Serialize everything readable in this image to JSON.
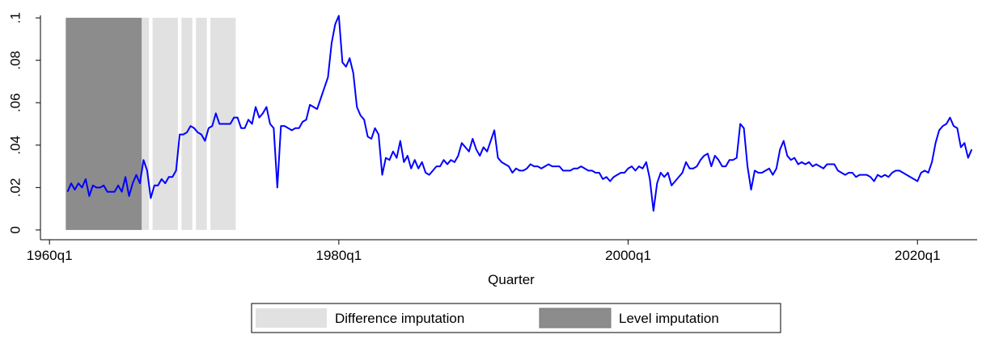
{
  "chart_data": {
    "type": "line",
    "x_label": "Quarter",
    "xlim": [
      -2.5,
      256.5
    ],
    "xticks": [
      {
        "value": 0,
        "label": "1960q1"
      },
      {
        "value": 80,
        "label": "1980q1"
      },
      {
        "value": 160,
        "label": "2000q1"
      },
      {
        "value": 240,
        "label": "2020q1"
      }
    ],
    "ylim": [
      -0.0046,
      0.1012
    ],
    "yticks": [
      0,
      {
        "value": 0.02,
        "label": ".02"
      },
      {
        "value": 0.04,
        "label": ".04"
      },
      {
        "value": 0.06,
        "label": ".06"
      },
      {
        "value": 0.08,
        "label": ".08"
      },
      {
        "value": 0.1,
        "label": ".1"
      }
    ],
    "shading": [
      {
        "name": "Difference imputation",
        "color": "#e1e1e1",
        "spans": [
          [
            26,
            27
          ],
          [
            29,
            35
          ],
          [
            37,
            39
          ],
          [
            41,
            43
          ],
          [
            45,
            51
          ]
        ]
      },
      {
        "name": "Level imputation",
        "color": "#8c8c8c",
        "spans": [
          [
            5,
            25
          ]
        ]
      }
    ],
    "color": "#0000ff",
    "x": [
      5,
      6,
      7,
      8,
      9,
      10,
      11,
      12,
      13,
      14,
      15,
      16,
      17,
      18,
      19,
      20,
      21,
      22,
      23,
      24,
      25,
      26,
      27,
      28,
      29,
      30,
      31,
      32,
      33,
      34,
      35,
      36,
      37,
      38,
      39,
      40,
      41,
      42,
      43,
      44,
      45,
      46,
      47,
      48,
      49,
      50,
      51,
      52,
      53,
      54,
      55,
      56,
      57,
      58,
      59,
      60,
      61,
      62,
      63,
      64,
      65,
      66,
      67,
      68,
      69,
      70,
      71,
      72,
      73,
      74,
      75,
      76,
      77,
      78,
      79,
      80,
      81,
      82,
      83,
      84,
      85,
      86,
      87,
      88,
      89,
      90,
      91,
      92,
      93,
      94,
      95,
      96,
      97,
      98,
      99,
      100,
      101,
      102,
      103,
      104,
      105,
      106,
      107,
      108,
      109,
      110,
      111,
      112,
      113,
      114,
      115,
      116,
      117,
      118,
      119,
      120,
      121,
      122,
      123,
      124,
      125,
      126,
      127,
      128,
      129,
      130,
      131,
      132,
      133,
      134,
      135,
      136,
      137,
      138,
      139,
      140,
      141,
      142,
      143,
      144,
      145,
      146,
      147,
      148,
      149,
      150,
      151,
      152,
      153,
      154,
      155,
      156,
      157,
      158,
      159,
      160,
      161,
      162,
      163,
      164,
      165,
      166,
      167,
      168,
      169,
      170,
      171,
      172,
      173,
      174,
      175,
      176,
      177,
      178,
      179,
      180,
      181,
      182,
      183,
      184,
      185,
      186,
      187,
      188,
      189,
      190,
      191,
      192,
      193,
      194,
      195,
      196,
      197,
      198,
      199,
      200,
      201,
      202,
      203,
      204,
      205,
      206,
      207,
      208,
      209,
      210,
      211,
      212,
      213,
      214,
      215,
      216,
      217,
      218,
      219,
      220,
      221,
      222,
      223,
      224,
      225,
      226,
      227,
      228,
      229,
      230,
      231,
      232,
      233,
      234,
      235,
      236,
      237,
      238,
      239,
      240,
      241,
      242,
      243,
      244,
      245,
      246,
      247,
      248,
      249,
      250,
      251,
      252,
      253,
      254,
      255
    ],
    "values": [
      0.018,
      0.022,
      0.019,
      0.022,
      0.02,
      0.024,
      0.016,
      0.021,
      0.02,
      0.02,
      0.021,
      0.018,
      0.018,
      0.018,
      0.021,
      0.018,
      0.025,
      0.016,
      0.022,
      0.026,
      0.022,
      0.033,
      0.028,
      0.015,
      0.021,
      0.021,
      0.024,
      0.022,
      0.025,
      0.025,
      0.028,
      0.045,
      0.045,
      0.046,
      0.049,
      0.048,
      0.046,
      0.045,
      0.042,
      0.048,
      0.049,
      0.055,
      0.05,
      0.05,
      0.05,
      0.05,
      0.053,
      0.053,
      0.048,
      0.048,
      0.052,
      0.05,
      0.058,
      0.053,
      0.055,
      0.058,
      0.05,
      0.048,
      0.02,
      0.049,
      0.049,
      0.048,
      0.047,
      0.048,
      0.048,
      0.051,
      0.052,
      0.059,
      0.058,
      0.057,
      0.062,
      0.067,
      0.072,
      0.088,
      0.097,
      0.101,
      0.079,
      0.077,
      0.081,
      0.074,
      0.058,
      0.054,
      0.052,
      0.044,
      0.043,
      0.048,
      0.045,
      0.026,
      0.034,
      0.033,
      0.037,
      0.034,
      0.042,
      0.032,
      0.035,
      0.029,
      0.033,
      0.029,
      0.032,
      0.027,
      0.026,
      0.028,
      0.03,
      0.03,
      0.033,
      0.031,
      0.033,
      0.032,
      0.035,
      0.041,
      0.039,
      0.037,
      0.043,
      0.038,
      0.035,
      0.039,
      0.037,
      0.042,
      0.047,
      0.034,
      0.032,
      0.031,
      0.03,
      0.027,
      0.029,
      0.028,
      0.028,
      0.029,
      0.031,
      0.03,
      0.03,
      0.029,
      0.03,
      0.031,
      0.03,
      0.03,
      0.03,
      0.028,
      0.028,
      0.028,
      0.029,
      0.029,
      0.03,
      0.029,
      0.028,
      0.028,
      0.027,
      0.027,
      0.024,
      0.025,
      0.023,
      0.025,
      0.026,
      0.027,
      0.027,
      0.029,
      0.03,
      0.028,
      0.03,
      0.029,
      0.032,
      0.024,
      0.009,
      0.022,
      0.027,
      0.025,
      0.027,
      0.021,
      0.023,
      0.025,
      0.027,
      0.032,
      0.029,
      0.029,
      0.03,
      0.033,
      0.035,
      0.036,
      0.03,
      0.035,
      0.033,
      0.03,
      0.03,
      0.033,
      0.033,
      0.034,
      0.05,
      0.048,
      0.03,
      0.019,
      0.028,
      0.027,
      0.027,
      0.028,
      0.029,
      0.026,
      0.029,
      0.038,
      0.042,
      0.035,
      0.033,
      0.034,
      0.031,
      0.032,
      0.031,
      0.032,
      0.03,
      0.031,
      0.03,
      0.029,
      0.031,
      0.031,
      0.031,
      0.028,
      0.027,
      0.026,
      0.027,
      0.027,
      0.025,
      0.026,
      0.026,
      0.026,
      0.025,
      0.023,
      0.026,
      0.025,
      0.026,
      0.025,
      0.027,
      0.028,
      0.028,
      0.027,
      0.026,
      0.025,
      0.024,
      0.023,
      0.027,
      0.028,
      0.027,
      0.032,
      0.041,
      0.047,
      0.049,
      0.05,
      0.053,
      0.049,
      0.048,
      0.039,
      0.041,
      0.034,
      0.038
    ]
  }
}
